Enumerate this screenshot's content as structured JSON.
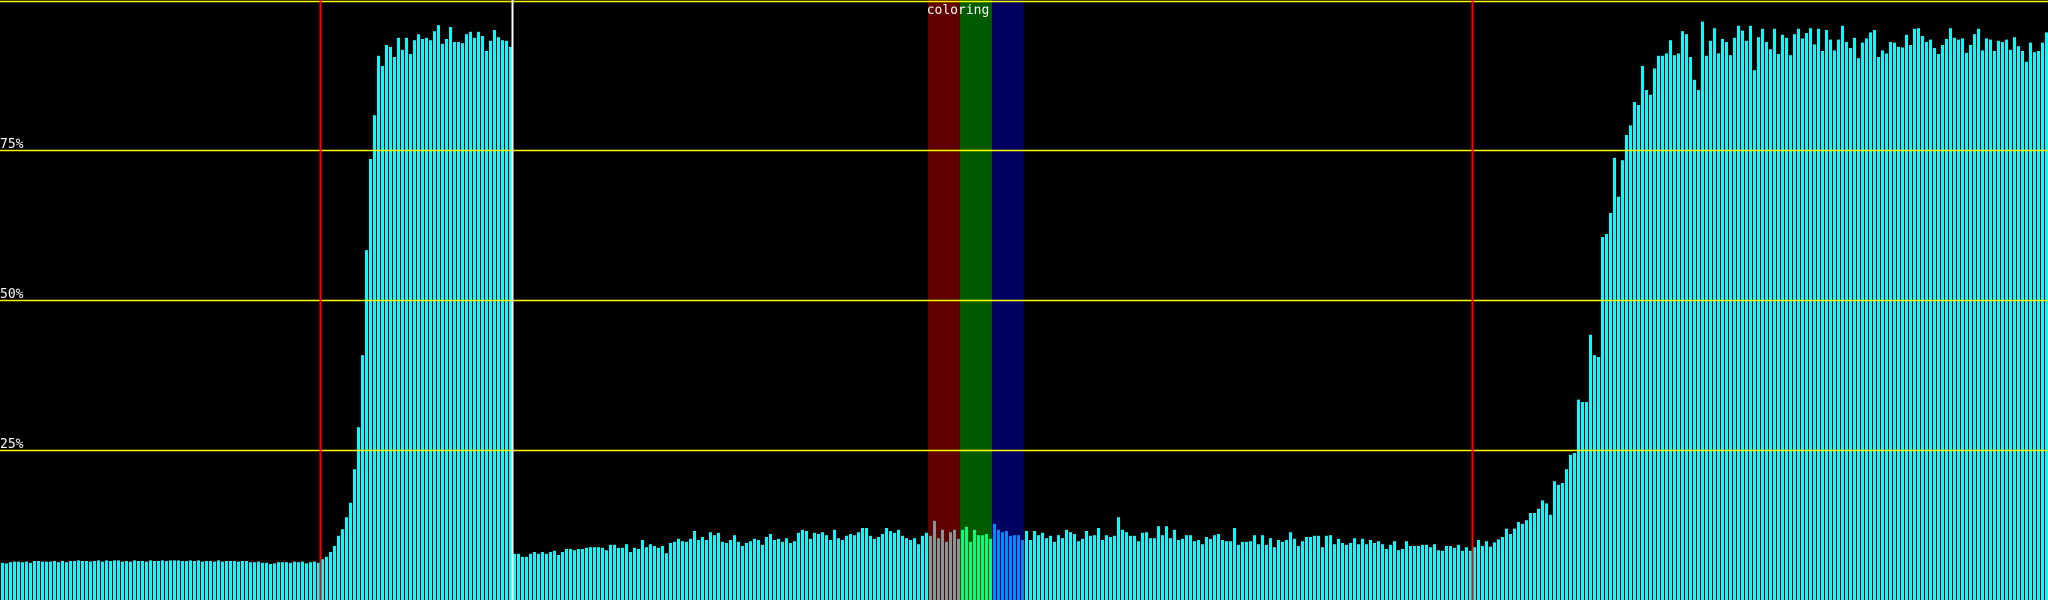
{
  "chart_data": {
    "type": "bar",
    "title": "",
    "xlabel": "",
    "ylabel": "",
    "ylim": [
      0,
      100
    ],
    "grid": true,
    "y_ticks": [
      {
        "value": 100,
        "label": ""
      },
      {
        "value": 75,
        "label": "75%"
      },
      {
        "value": 50,
        "label": "50%"
      },
      {
        "value": 25,
        "label": "25%"
      }
    ],
    "bar_color": "#00ffff",
    "grid_color": "#ffff00",
    "background": "#000000",
    "markers": [
      {
        "index": 80,
        "color": "#ff0000"
      },
      {
        "index": 128,
        "color": "#ffffff"
      },
      {
        "index": 368,
        "color": "#ff0000"
      }
    ],
    "bands": [
      {
        "start": 232,
        "end": 239,
        "background": "#600000",
        "bar_color": "#7f9898"
      },
      {
        "start": 240,
        "end": 247,
        "background": "#005a00",
        "bar_color": "#00ff80"
      },
      {
        "start": 248,
        "end": 255,
        "background": "#000060",
        "bar_color": "#0088ff"
      }
    ],
    "band_label": "coloring",
    "values": [
      6.2,
      6.1,
      6.3,
      6.4,
      6.4,
      6.3,
      6.4,
      6.2,
      6.5,
      6.5,
      6.4,
      6.4,
      6.4,
      6.5,
      6.3,
      6.5,
      6.3,
      6.5,
      6.5,
      6.6,
      6.5,
      6.5,
      6.4,
      6.5,
      6.6,
      6.4,
      6.6,
      6.5,
      6.6,
      6.6,
      6.4,
      6.5,
      6.4,
      6.6,
      6.5,
      6.5,
      6.4,
      6.6,
      6.5,
      6.5,
      6.6,
      6.5,
      6.6,
      6.6,
      6.6,
      6.5,
      6.5,
      6.6,
      6.5,
      6.6,
      6.4,
      6.5,
      6.5,
      6.4,
      6.6,
      6.4,
      6.5,
      6.5,
      6.5,
      6.4,
      6.5,
      6.5,
      6.3,
      6.3,
      6.4,
      6.2,
      6.2,
      6.0,
      6.1,
      6.3,
      6.3,
      6.3,
      6.2,
      6.4,
      6.3,
      6.4,
      6.1,
      6.3,
      6.4,
      6.2,
      6.8,
      7.2,
      8.0,
      9.0,
      10.7,
      11.8,
      13.8,
      16.2,
      21.8,
      28.8,
      40.8,
      58.3,
      73.5,
      80.8,
      90.7,
      89.0,
      92.5,
      92.2,
      90.5,
      93.7,
      91.7,
      93.7,
      91.0,
      93.3,
      94.3,
      93.5,
      93.7,
      93.3,
      94.8,
      95.8,
      92.7,
      93.5,
      95.5,
      93.0,
      93.0,
      92.8,
      94.3,
      94.7,
      93.7,
      94.7,
      94.0,
      91.5,
      93.2,
      95.0,
      93.8,
      93.3,
      93.2,
      92.2,
      7.7,
      7.7,
      7.2,
      7.2,
      7.7,
      8.0,
      7.7,
      8.0,
      7.7,
      8.0,
      8.2,
      7.5,
      8.0,
      8.5,
      8.5,
      8.3,
      8.5,
      8.5,
      8.7,
      8.8,
      8.8,
      8.8,
      8.7,
      8.3,
      9.2,
      9.2,
      8.7,
      8.7,
      9.3,
      8.0,
      8.7,
      8.5,
      10.0,
      8.8,
      9.3,
      9.0,
      8.7,
      9.0,
      7.8,
      9.5,
      9.7,
      10.2,
      9.8,
      9.7,
      10.2,
      11.5,
      10.0,
      10.5,
      10.0,
      11.3,
      10.8,
      11.2,
      9.7,
      9.5,
      10.0,
      10.8,
      9.7,
      9.0,
      9.5,
      9.8,
      10.2,
      10.0,
      9.2,
      10.5,
      11.0,
      10.0,
      10.2,
      9.7,
      10.3,
      9.5,
      9.8,
      11.2,
      11.7,
      11.5,
      10.2,
      11.2,
      11.0,
      11.3,
      10.8,
      10.0,
      11.7,
      10.3,
      10.0,
      10.7,
      11.0,
      10.8,
      11.3,
      12.0,
      12.0,
      10.7,
      10.2,
      10.5,
      11.0,
      12.0,
      11.5,
      11.2,
      11.7,
      10.7,
      10.3,
      10.0,
      10.3,
      9.3,
      10.7,
      11.2,
      10.7,
      13.2,
      10.3,
      11.7,
      9.7,
      11.3,
      11.7,
      10.2,
      11.7,
      12.2,
      9.7,
      11.7,
      10.8,
      10.8,
      11.0,
      10.2,
      12.7,
      11.7,
      11.3,
      11.5,
      10.7,
      10.8,
      10.8,
      10.0,
      11.5,
      10.0,
      11.5,
      10.8,
      11.2,
      10.3,
      10.7,
      9.7,
      10.8,
      10.3,
      11.7,
      11.3,
      11.0,
      9.8,
      10.2,
      11.5,
      10.7,
      10.8,
      12.0,
      10.0,
      10.8,
      10.5,
      10.7,
      13.8,
      11.7,
      11.3,
      10.7,
      10.7,
      9.8,
      11.2,
      11.3,
      10.3,
      10.3,
      12.3,
      10.8,
      12.3,
      10.3,
      11.7,
      10.0,
      10.2,
      10.8,
      10.8,
      9.8,
      10.0,
      9.3,
      10.5,
      10.2,
      10.8,
      11.0,
      10.0,
      9.8,
      9.8,
      12.0,
      9.2,
      9.7,
      9.7,
      9.8,
      10.8,
      9.3,
      10.8,
      9.2,
      10.3,
      8.8,
      10.0,
      9.7,
      10.0,
      11.3,
      10.2,
      9.0,
      9.8,
      10.5,
      10.5,
      10.7,
      10.7,
      8.8,
      10.7,
      10.8,
      9.3,
      10.2,
      9.5,
      9.2,
      9.5,
      10.3,
      9.3,
      10.2,
      9.3,
      10.0,
      9.5,
      9.8,
      9.3,
      8.5,
      9.2,
      9.8,
      8.3,
      8.5,
      9.8,
      9.0,
      9.0,
      9.0,
      9.2,
      9.2,
      8.8,
      9.3,
      8.3,
      8.2,
      9.0,
      9.0,
      8.7,
      9.2,
      8.2,
      8.8,
      8.2,
      8.8,
      10.0,
      9.0,
      9.8,
      8.9,
      9.6,
      10.1,
      10.5,
      11.9,
      11.0,
      11.9,
      13.0,
      12.7,
      13.3,
      14.5,
      14.5,
      15.2,
      16.6,
      16.1,
      14.2,
      19.8,
      19.2,
      19.5,
      21.8,
      24.2,
      24.5,
      33.4,
      33.0,
      33.0,
      44.2,
      40.8,
      40.5,
      60.5,
      61.0,
      64.5,
      73.7,
      67.2,
      73.3,
      77.5,
      79.1,
      83.0,
      82.5,
      89.0,
      85.0,
      84.2,
      88.6,
      90.7,
      90.7,
      91.1,
      93.3,
      90.8,
      91.1,
      94.8,
      94.3,
      90.5,
      86.7,
      85.0,
      96.4,
      90.7,
      93.2,
      95.3,
      91.1,
      93.5,
      93.0,
      90.8,
      93.7,
      95.7,
      94.9,
      93.2,
      95.7,
      88.3,
      93.8,
      95.2,
      93.0,
      91.8,
      95.2,
      91.0,
      94.2,
      93.7,
      90.8,
      94.3,
      95.2,
      93.6,
      94.5,
      95.3,
      92.6,
      95.2,
      91.5,
      95.0,
      93.4,
      91.6,
      93.4,
      95.7,
      93.0,
      92.0,
      93.7,
      90.3,
      92.9,
      93.6,
      94.6,
      95.0,
      90.5,
      91.6,
      91.1,
      93.0,
      92.9,
      92.2,
      92.1,
      94.2,
      92.5,
      95.2,
      95.3,
      94.0,
      93.0,
      93.4,
      92.0,
      91.0,
      92.5,
      93.5,
      95.3,
      93.7,
      93.4,
      93.6,
      91.2,
      92.5,
      94.3,
      95.2,
      91.6,
      93.6,
      93.4,
      91.5,
      93.2,
      93.0,
      93.4,
      91.7,
      93.8,
      92.3,
      91.5,
      89.7,
      92.9,
      91.3,
      91.5,
      92.9,
      94.6
    ]
  }
}
